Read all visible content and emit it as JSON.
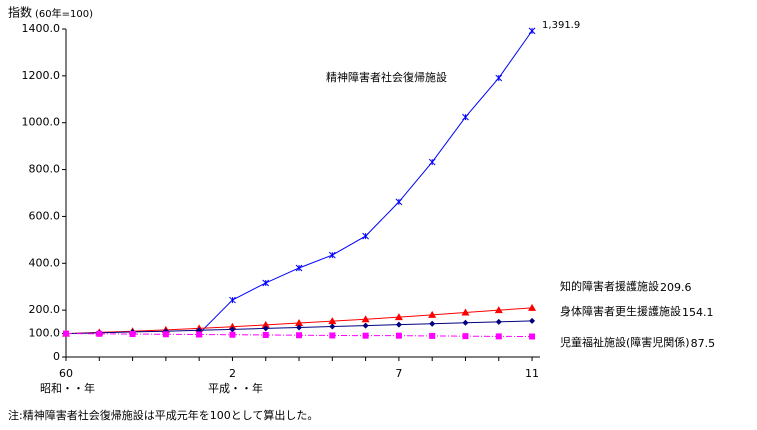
{
  "chart_data": {
    "type": "line",
    "y_label": "指数",
    "y_label_note": "(60年=100)",
    "x_label_showa": "昭和・・年",
    "x_label_heisei": "平成・・年",
    "note": "注:精神障害者社会復帰施設は平成元年を100として算出した。",
    "categories": [
      "60",
      null,
      null,
      null,
      null,
      "2",
      null,
      null,
      null,
      null,
      "7",
      null,
      null,
      null,
      "11"
    ],
    "ylim": [
      0,
      1400
    ],
    "yticks": [
      0,
      {
        "value": 100,
        "label": "100.0"
      },
      {
        "value": 200,
        "label": "200.0"
      },
      {
        "value": 400,
        "label": "400.0"
      },
      {
        "value": 600,
        "label": "600.0"
      },
      {
        "value": 800,
        "label": "800.0"
      },
      {
        "value": 1000,
        "label": "1000.0"
      },
      {
        "value": 1200,
        "label": "1200.0"
      },
      {
        "value": 1400,
        "label": "1400.0"
      }
    ],
    "series": [
      {
        "name": "精神障害者社会復帰施設",
        "color": "#0000ff",
        "marker": "star",
        "dash": "solid",
        "values": [
          null,
          null,
          null,
          null,
          100,
          243,
          316,
          380,
          435,
          516,
          662,
          832,
          1024,
          1191,
          1391.9
        ],
        "value_labels": [
          null,
          null,
          null,
          null,
          null,
          null,
          null,
          null,
          null,
          null,
          null,
          null,
          null,
          null,
          "1,391.9"
        ]
      },
      {
        "name": "知的障害者援護施設",
        "color": "#ff0000",
        "marker": "triangle",
        "dash": "solid",
        "values": [
          100,
          105,
          110,
          116,
          122,
          129,
          137,
          145,
          153,
          161,
          170,
          180,
          190,
          200,
          209.6
        ]
      },
      {
        "name": "身体障害者更生援護施設",
        "color": "#000080",
        "marker": "diamond",
        "dash": "solid",
        "values": [
          100,
          103,
          107,
          110,
          114,
          118,
          122,
          126,
          130,
          134,
          138,
          142,
          146,
          150,
          154.1
        ]
      },
      {
        "name": "児童福祉施設(障害児関係)",
        "color": "#ff00ff",
        "marker": "square",
        "dash": "dashdot",
        "values": [
          100,
          99,
          98,
          97,
          96,
          95,
          94,
          93,
          92,
          91,
          91,
          90,
          89,
          88,
          87.5
        ]
      }
    ]
  }
}
